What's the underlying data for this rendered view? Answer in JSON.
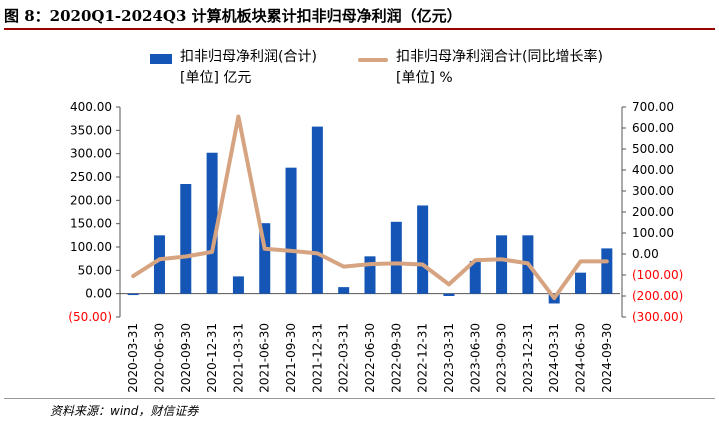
{
  "title": "图 8：2020Q1-2024Q3 计算机板块累计扣非归母净利润（亿元）",
  "source": "资料来源：wind，财信证券",
  "colors": {
    "bar": "#1455b5",
    "line": "#d6a481",
    "negative_label": "#ff0000",
    "title_rule": "#9a0000"
  },
  "chart_data": {
    "type": "bar",
    "categories": [
      "2020-03-31",
      "2020-06-30",
      "2020-09-30",
      "2020-12-31",
      "2021-03-31",
      "2021-06-30",
      "2021-09-30",
      "2021-12-31",
      "2022-03-31",
      "2022-06-30",
      "2022-09-30",
      "2022-12-31",
      "2023-03-31",
      "2023-06-30",
      "2023-09-30",
      "2023-12-31",
      "2024-03-31",
      "2024-06-30",
      "2024-09-30"
    ],
    "series": [
      {
        "name": "扣非归母净利润(合计)",
        "unit": "[单位] 亿元",
        "type": "bar",
        "axis": "left",
        "values": [
          -3,
          125,
          235,
          302,
          37,
          151,
          270,
          358,
          14,
          80,
          154,
          189,
          -5,
          70,
          125,
          125,
          -21,
          45,
          97
        ]
      },
      {
        "name": "扣非归母净利润合计(同比增长率)",
        "unit": "[单位] %",
        "type": "line",
        "axis": "right",
        "values": [
          -105,
          -25,
          -12,
          10,
          655,
          25,
          15,
          3,
          -60,
          -48,
          -45,
          -50,
          -145,
          -30,
          -25,
          -45,
          -210,
          -35,
          -35
        ]
      }
    ],
    "y_left": {
      "min": -50,
      "max": 400,
      "ticks": [
        "(50.00)",
        "0.00",
        "50.00",
        "100.00",
        "150.00",
        "200.00",
        "250.00",
        "300.00",
        "350.00",
        "400.00"
      ]
    },
    "y_right": {
      "min": -300,
      "max": 700,
      "ticks": [
        "(300.00)",
        "(200.00)",
        "(100.00)",
        "0.00",
        "100.00",
        "200.00",
        "300.00",
        "400.00",
        "500.00",
        "600.00",
        "700.00"
      ]
    },
    "grid": false,
    "legend_position": "top"
  }
}
